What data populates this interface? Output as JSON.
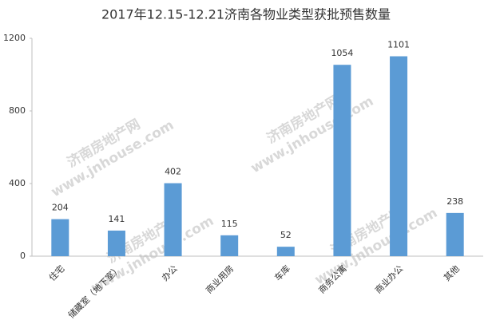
{
  "chart_data": {
    "type": "bar",
    "title": "2017年12.15-12.21济南各物业类型获批预售数量",
    "categories": [
      "住宅",
      "储藏室（地下室）",
      "办公",
      "商业用房",
      "车库",
      "商务公寓",
      "商业办公",
      "其他"
    ],
    "values": [
      204,
      141,
      402,
      115,
      52,
      1054,
      1101,
      238
    ],
    "color": "#5b9bd5",
    "ylim": [
      0,
      1200
    ],
    "yticks": [
      0,
      400,
      800,
      1200
    ],
    "grid": false,
    "watermark": [
      "济南房地产网",
      "www.jnhouse.com"
    ]
  }
}
